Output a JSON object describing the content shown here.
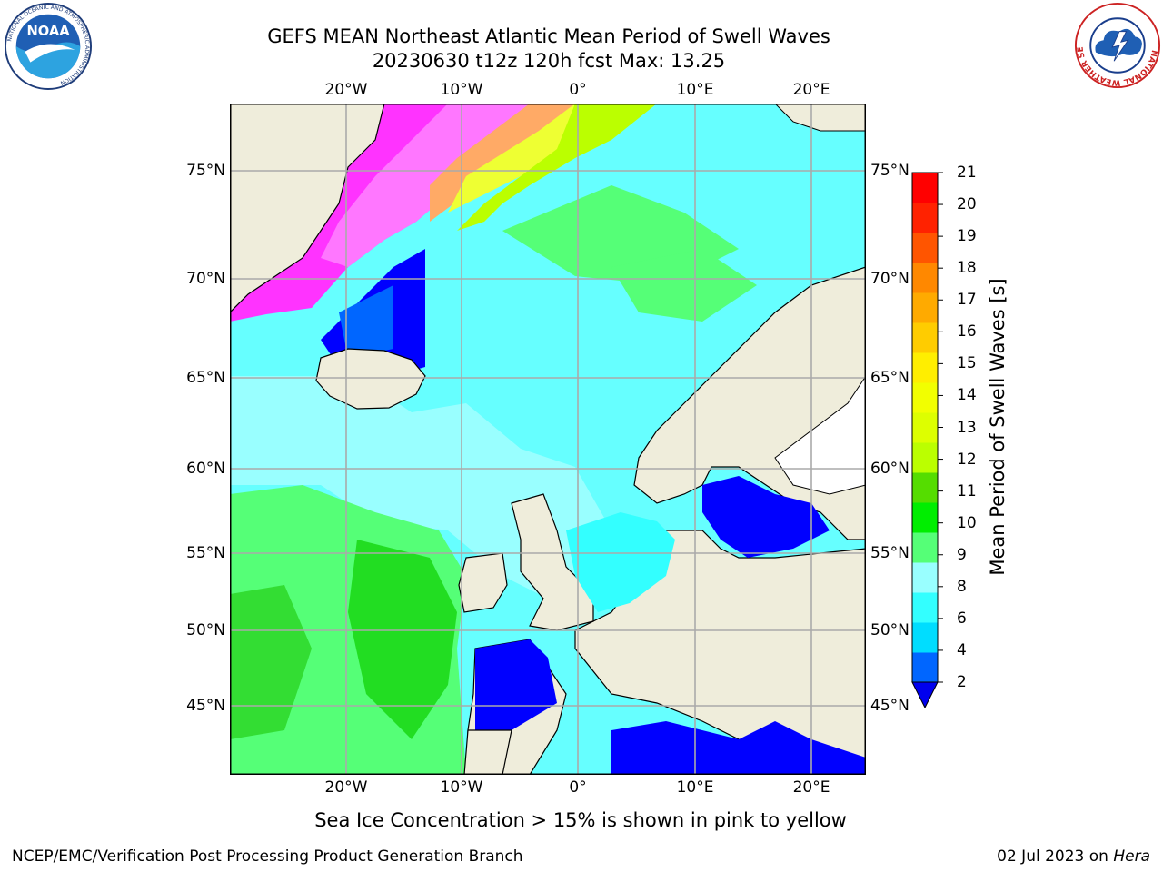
{
  "title": {
    "line1": "GEFS MEAN Northeast Atlantic Mean Period of Swell Waves",
    "line2": "20230630 t12z 120h fcst   Max: 13.25"
  },
  "map": {
    "lon_ticks": [
      "20°W",
      "10°W",
      "0°",
      "10°E",
      "20°E"
    ],
    "lon_values": [
      -20,
      -10,
      0,
      10,
      20
    ],
    "lat_ticks": [
      "75°N",
      "70°N",
      "65°N",
      "60°N",
      "55°N",
      "50°N",
      "45°N"
    ],
    "lat_values": [
      75,
      70,
      65,
      60,
      55,
      50,
      45
    ],
    "extent": {
      "lon_min": -30,
      "lon_max": 24.6,
      "lat_min": 41,
      "lat_max": 78
    },
    "projection": "lambert-conformal",
    "grid": true,
    "colors": {
      "land": "#efeddb",
      "ocean_low_period": "#0000ff",
      "ocean_mid_period": "#00ffff",
      "ocean_high_period": "#33cc33",
      "sea_ice": "#ff33ff"
    }
  },
  "colorbar": {
    "title": "Mean Period of Swell Waves [s]",
    "labels": [
      "21",
      "20",
      "19",
      "18",
      "17",
      "16",
      "15",
      "14",
      "13",
      "12",
      "11",
      "10",
      "9",
      "8",
      "6",
      "4",
      "2"
    ],
    "values": [
      2,
      4,
      6,
      8,
      9,
      10,
      11,
      12,
      13,
      14,
      15,
      16,
      17,
      18,
      19,
      20,
      21
    ],
    "colors": [
      "#0066ff",
      "#00ddff",
      "#33ffff",
      "#99ffff",
      "#55ff77",
      "#00ee00",
      "#55dd00",
      "#bbff00",
      "#ddff00",
      "#f2ff00",
      "#ffee00",
      "#ffcc00",
      "#ffaa00",
      "#ff8800",
      "#ff5500",
      "#ff2200",
      "#ff0000"
    ],
    "under_color": "#0000ee",
    "extend": "min"
  },
  "footnote": "Sea Ice Concentration > 15% is shown in pink to yellow",
  "credit": {
    "branch": "NCEP/EMC/Verification Post Processing Product Generation Branch",
    "date": "02 Jul 2023 on ",
    "machine": "Hera"
  },
  "logos": {
    "noaa": {
      "text": "NOAA",
      "ring_text": "NATIONAL OCEANIC AND ATMOSPHERIC ADMINISTRATION"
    },
    "nws": {
      "ring_text": "NATIONAL WEATHER SERVICE"
    }
  }
}
